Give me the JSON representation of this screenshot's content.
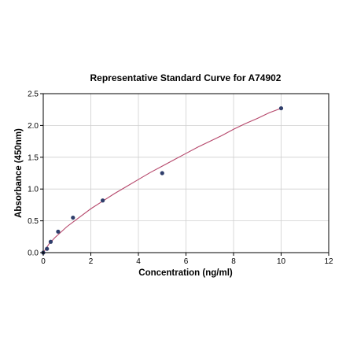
{
  "chart_data": {
    "type": "scatter",
    "title": "Representative Standard Curve for A74902",
    "xlabel": "Concentration (ng/ml)",
    "ylabel": "Absorbance (450nm)",
    "xlim": [
      0,
      12
    ],
    "ylim": [
      0,
      2.5
    ],
    "x_ticks": [
      "0",
      "2",
      "4",
      "6",
      "8",
      "10",
      "12"
    ],
    "y_ticks": [
      "0.0",
      "0.5",
      "1.0",
      "1.5",
      "2.0",
      "2.5"
    ],
    "grid": true,
    "series": [
      {
        "points": [
          {
            "x": 0.0,
            "y": 0.0
          },
          {
            "x": 0.156,
            "y": 0.06
          },
          {
            "x": 0.313,
            "y": 0.17
          },
          {
            "x": 0.625,
            "y": 0.33
          },
          {
            "x": 1.25,
            "y": 0.55
          },
          {
            "x": 2.5,
            "y": 0.82
          },
          {
            "x": 5.0,
            "y": 1.25
          },
          {
            "x": 10.0,
            "y": 2.27
          }
        ]
      }
    ],
    "fit_curve": {
      "x": [
        0,
        0.25,
        0.5,
        1,
        1.5,
        2,
        2.5,
        3,
        3.5,
        4,
        4.5,
        5,
        5.5,
        6,
        6.5,
        7,
        7.5,
        8,
        8.5,
        9,
        9.5,
        10
      ],
      "y": [
        0.0,
        0.14,
        0.24,
        0.41,
        0.55,
        0.69,
        0.81,
        0.93,
        1.04,
        1.15,
        1.26,
        1.36,
        1.46,
        1.56,
        1.66,
        1.75,
        1.84,
        1.94,
        2.03,
        2.11,
        2.2,
        2.27
      ]
    },
    "colors": {
      "point": "#2f3e6b",
      "curve": "#b5466a",
      "grid": "#cfcfcf",
      "axis": "#000000"
    }
  }
}
